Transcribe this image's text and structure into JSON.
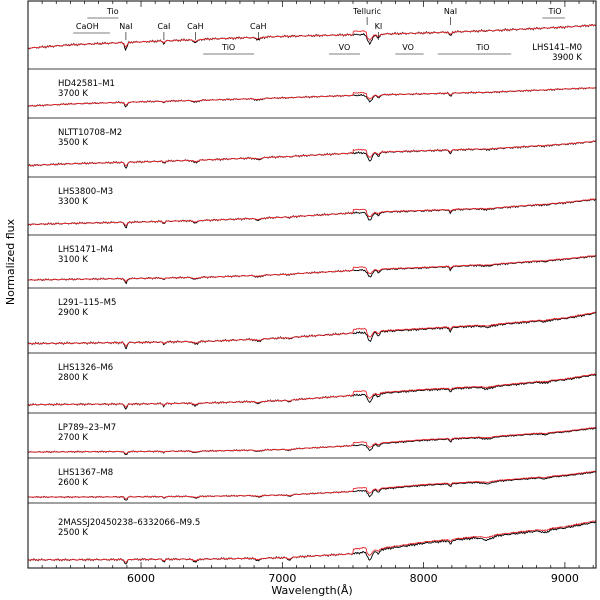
{
  "chart_data": {
    "type": "line",
    "xlabel": "Wavelength(Å)",
    "ylabel": "Normalized flux",
    "xlim": [
      5200,
      9220
    ],
    "x_ticks": [
      6000,
      7000,
      8000,
      9000
    ],
    "x_tick_labels": [
      "6000",
      "7000",
      "8000",
      "9000"
    ],
    "series_colors": {
      "observed": "#000000",
      "template": "#e8262b"
    },
    "panels": [
      {
        "name": "LHS141–M0",
        "temp": "3900 K",
        "shape": [
          [
            5200,
            0.3
          ],
          [
            5500,
            0.38
          ],
          [
            6000,
            0.45
          ],
          [
            6500,
            0.52
          ],
          [
            7000,
            0.58
          ],
          [
            7500,
            0.62
          ],
          [
            8000,
            0.66
          ],
          [
            8500,
            0.72
          ],
          [
            9000,
            0.8
          ],
          [
            9220,
            0.85
          ]
        ]
      },
      {
        "name": "HD42581–M1",
        "temp": "3700 K",
        "shape": [
          [
            5200,
            0.2
          ],
          [
            5500,
            0.27
          ],
          [
            6000,
            0.34
          ],
          [
            6500,
            0.4
          ],
          [
            7000,
            0.47
          ],
          [
            7500,
            0.55
          ],
          [
            8000,
            0.6
          ],
          [
            8500,
            0.66
          ],
          [
            9000,
            0.76
          ],
          [
            9220,
            0.8
          ]
        ]
      },
      {
        "name": "NLTT10708–M2",
        "temp": "3500 K",
        "shape": [
          [
            5200,
            0.12
          ],
          [
            5500,
            0.17
          ],
          [
            6000,
            0.22
          ],
          [
            6500,
            0.28
          ],
          [
            7000,
            0.36
          ],
          [
            7500,
            0.46
          ],
          [
            8000,
            0.52
          ],
          [
            8500,
            0.58
          ],
          [
            9000,
            0.7
          ],
          [
            9220,
            0.78
          ]
        ]
      },
      {
        "name": "LHS3800–M3",
        "temp": "3300 K",
        "shape": [
          [
            5200,
            0.1
          ],
          [
            5500,
            0.13
          ],
          [
            6000,
            0.17
          ],
          [
            6500,
            0.22
          ],
          [
            7000,
            0.3
          ],
          [
            7500,
            0.42
          ],
          [
            8000,
            0.48
          ],
          [
            8500,
            0.55
          ],
          [
            9000,
            0.7
          ],
          [
            9220,
            0.8
          ]
        ]
      },
      {
        "name": "LHS1471–M4",
        "temp": "3100 K",
        "shape": [
          [
            5200,
            0.05
          ],
          [
            5500,
            0.07
          ],
          [
            6000,
            0.1
          ],
          [
            6500,
            0.14
          ],
          [
            7000,
            0.22
          ],
          [
            7500,
            0.34
          ],
          [
            8000,
            0.42
          ],
          [
            8500,
            0.52
          ],
          [
            9000,
            0.68
          ],
          [
            9220,
            0.78
          ]
        ]
      },
      {
        "name": "L291–115–M5",
        "temp": "2900 K",
        "shape": [
          [
            5200,
            0.04
          ],
          [
            5500,
            0.05
          ],
          [
            6000,
            0.07
          ],
          [
            6500,
            0.1
          ],
          [
            7000,
            0.18
          ],
          [
            7500,
            0.3
          ],
          [
            8000,
            0.4
          ],
          [
            8500,
            0.5
          ],
          [
            9000,
            0.66
          ],
          [
            9220,
            0.8
          ]
        ]
      },
      {
        "name": "LHS1326–M6",
        "temp": "2800 K",
        "shape": [
          [
            5200,
            0.03
          ],
          [
            5500,
            0.04
          ],
          [
            6000,
            0.05
          ],
          [
            6500,
            0.08
          ],
          [
            7000,
            0.14
          ],
          [
            7500,
            0.28
          ],
          [
            8000,
            0.42
          ],
          [
            8500,
            0.52
          ],
          [
            9000,
            0.7
          ],
          [
            9220,
            0.84
          ]
        ]
      },
      {
        "name": "LP789–23–M7",
        "temp": "2700 K",
        "shape": [
          [
            5200,
            0.02
          ],
          [
            5500,
            0.03
          ],
          [
            6000,
            0.04
          ],
          [
            6500,
            0.06
          ],
          [
            7000,
            0.11
          ],
          [
            7500,
            0.25
          ],
          [
            8000,
            0.44
          ],
          [
            8500,
            0.56
          ],
          [
            9000,
            0.74
          ],
          [
            9220,
            0.88
          ]
        ]
      },
      {
        "name": "LHS1367–M8",
        "temp": "2600 K",
        "shape": [
          [
            5200,
            0.02
          ],
          [
            5500,
            0.02
          ],
          [
            6000,
            0.03
          ],
          [
            6500,
            0.05
          ],
          [
            7000,
            0.09
          ],
          [
            7500,
            0.22
          ],
          [
            8000,
            0.44
          ],
          [
            8500,
            0.58
          ],
          [
            9000,
            0.78
          ],
          [
            9220,
            0.92
          ]
        ]
      },
      {
        "name": "2MASSJ20450238–6332066–M9.5",
        "temp": "2500 K",
        "shape": [
          [
            5200,
            0.01
          ],
          [
            5500,
            0.01
          ],
          [
            6000,
            0.02
          ],
          [
            6500,
            0.03
          ],
          [
            7000,
            0.06
          ],
          [
            7500,
            0.16
          ],
          [
            8000,
            0.42
          ],
          [
            8500,
            0.6
          ],
          [
            9000,
            0.8
          ],
          [
            9220,
            0.95
          ]
        ]
      }
    ],
    "features": [
      {
        "label": "Tio",
        "x": 5800,
        "band": [
          5620,
          5840
        ],
        "row": 0
      },
      {
        "label": "CaOH",
        "x": 5620,
        "band": [
          5520,
          5780
        ],
        "row": 1
      },
      {
        "label": "NaI",
        "x": 5893,
        "tick": true,
        "row": 1
      },
      {
        "label": "CaI",
        "x": 6162,
        "tick": true,
        "row": 1
      },
      {
        "label": "CaH",
        "x": 6385,
        "tick": true,
        "row": 1
      },
      {
        "label": "CaH",
        "x": 6830,
        "tick": true,
        "row": 1
      },
      {
        "label": "TiO",
        "x": 6620,
        "band": [
          6440,
          6800
        ],
        "row": 2
      },
      {
        "label": "Telluric",
        "x": 7600,
        "tick": true,
        "row": 0
      },
      {
        "label": "KI",
        "x": 7680,
        "tick": true,
        "row": 1
      },
      {
        "label": "NaI",
        "x": 8190,
        "tick": true,
        "row": 0
      },
      {
        "label": "VO",
        "x": 7440,
        "band": [
          7330,
          7550
        ],
        "row": 2
      },
      {
        "label": "VO",
        "x": 7890,
        "band": [
          7800,
          8000
        ],
        "row": 2
      },
      {
        "label": "TiO",
        "x": 8420,
        "band": [
          8100,
          8620
        ],
        "row": 2
      },
      {
        "label": "TiO",
        "x": 8930,
        "band": [
          8840,
          9000
        ],
        "row": 0
      }
    ]
  }
}
